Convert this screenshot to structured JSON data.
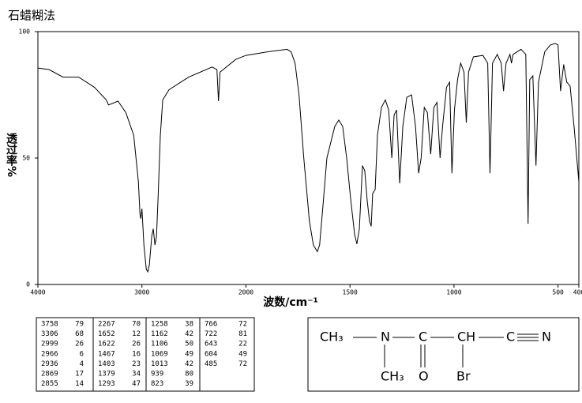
{
  "chart_data": {
    "type": "line",
    "title": "石蜡糊法",
    "x_label": "波数/cm⁻¹",
    "y_label": "透过率%",
    "xlim": [
      4000,
      400
    ],
    "xticks": [
      4000,
      3000,
      2000,
      1500,
      1000,
      500,
      400
    ],
    "x_scale_break": 2000,
    "ylim": [
      0,
      100
    ],
    "yticks": [
      0,
      50,
      100
    ],
    "grid": false,
    "series": [
      {
        "color": "#000000",
        "x": [
          4000,
          3894,
          3758,
          3608,
          3457,
          3343,
          3321,
          3230,
          3155,
          3079,
          3034,
          3019,
          3011,
          3000,
          2981,
          2958,
          2943,
          2928,
          2906,
          2891,
          2875,
          2860,
          2845,
          2823,
          2800,
          2740,
          2551,
          2325,
          2279,
          2264,
          2249,
          2098,
          2000,
          1897,
          1802,
          1783,
          1764,
          1745,
          1722,
          1695,
          1676,
          1657,
          1646,
          1630,
          1611,
          1573,
          1554,
          1535,
          1516,
          1497,
          1478,
          1467,
          1455,
          1440,
          1429,
          1417,
          1406,
          1398,
          1391,
          1379,
          1368,
          1349,
          1330,
          1314,
          1299,
          1288,
          1276,
          1261,
          1246,
          1227,
          1204,
          1185,
          1170,
          1158,
          1143,
          1128,
          1112,
          1097,
          1082,
          1067,
          1055,
          1036,
          1021,
          1010,
          998,
          983,
          968,
          952,
          941,
          930,
          907,
          861,
          838,
          827,
          815,
          792,
          773,
          762,
          750,
          731,
          724,
          716,
          678,
          655,
          644,
          636,
          621,
          606,
          594,
          564,
          537,
          514,
          500,
          488,
          473,
          458,
          442,
          423,
          400
        ],
        "values": [
          85.6,
          85,
          82,
          82,
          78,
          73,
          71,
          72.5,
          68,
          59,
          40.6,
          28,
          26,
          30,
          15.6,
          6,
          5,
          8,
          19,
          22,
          15.6,
          19,
          34,
          59,
          73,
          77,
          82,
          86,
          85,
          72.5,
          84,
          89,
          90.6,
          92,
          93,
          92,
          87.5,
          75,
          50,
          25,
          15.6,
          13,
          15.6,
          31,
          50,
          62.5,
          65,
          62.5,
          50,
          34,
          20,
          16,
          22,
          47,
          45,
          33,
          25,
          23,
          36,
          37.5,
          59,
          70,
          73,
          69,
          50,
          67,
          69,
          40,
          62.5,
          74,
          75,
          62.5,
          44,
          50,
          70,
          68,
          51.5,
          70,
          72,
          50,
          62.5,
          78,
          80,
          44,
          69,
          81,
          87.5,
          84,
          64,
          84,
          90,
          90.6,
          87.5,
          44,
          87.5,
          91,
          87.5,
          76.5,
          87.5,
          91,
          87.5,
          91,
          93,
          91,
          24,
          81,
          82.5,
          47,
          80,
          92,
          94.7,
          95.3,
          94.7,
          76.5,
          87,
          80,
          78.5,
          62.5,
          40.6
        ]
      }
    ]
  },
  "peak_table": {
    "rows": [
      [
        3758,
        79
      ],
      [
        3306,
        68
      ],
      [
        2999,
        26
      ],
      [
        2966,
        6
      ],
      [
        2936,
        4
      ],
      [
        2869,
        17
      ],
      [
        2855,
        14
      ],
      [
        2267,
        70
      ],
      [
        1652,
        12
      ],
      [
        1622,
        26
      ],
      [
        1467,
        16
      ],
      [
        1403,
        23
      ],
      [
        1379,
        34
      ],
      [
        1293,
        47
      ],
      [
        1258,
        38
      ],
      [
        1162,
        42
      ],
      [
        1106,
        50
      ],
      [
        1069,
        49
      ],
      [
        1013,
        42
      ],
      [
        939,
        80
      ],
      [
        823,
        39
      ],
      [
        766,
        72
      ],
      [
        722,
        81
      ],
      [
        643,
        22
      ],
      [
        604,
        49
      ],
      [
        485,
        72
      ]
    ]
  },
  "structure": {
    "labels": [
      "CH₃",
      "N",
      "C",
      "CH",
      "C",
      "N",
      "CH₃",
      "O",
      "Br"
    ]
  }
}
